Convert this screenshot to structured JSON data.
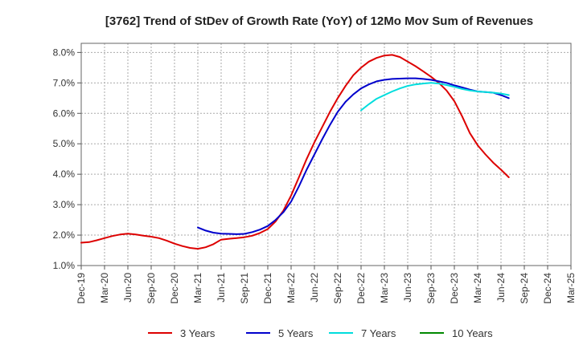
{
  "chart_data": {
    "type": "line",
    "title": "[3762]  Trend of StDev of Growth Rate (YoY) of 12Mo Mov Sum of Revenues",
    "xlabel": "",
    "ylabel": "",
    "x_tick_labels": [
      "Dec-19",
      "Mar-20",
      "Jun-20",
      "Sep-20",
      "Dec-20",
      "Mar-21",
      "Jun-21",
      "Sep-21",
      "Dec-21",
      "Mar-22",
      "Jun-22",
      "Sep-22",
      "Dec-22",
      "Mar-23",
      "Jun-23",
      "Sep-23",
      "Dec-23",
      "Mar-24",
      "Jun-24",
      "Sep-24",
      "Dec-24",
      "Mar-25"
    ],
    "y_tick_labels": [
      "1.0%",
      "2.0%",
      "3.0%",
      "4.0%",
      "5.0%",
      "6.0%",
      "7.0%",
      "8.0%"
    ],
    "ylim": [
      1.0,
      8.3
    ],
    "x_range_months": [
      0,
      63
    ],
    "grid": true,
    "legend_position": "bottom",
    "series": [
      {
        "name": "3 Years",
        "color": "#dd0000",
        "points": [
          [
            0,
            1.75
          ],
          [
            1,
            1.77
          ],
          [
            2,
            1.83
          ],
          [
            3,
            1.9
          ],
          [
            4,
            1.97
          ],
          [
            5,
            2.02
          ],
          [
            6,
            2.05
          ],
          [
            7,
            2.02
          ],
          [
            8,
            1.98
          ],
          [
            9,
            1.95
          ],
          [
            10,
            1.9
          ],
          [
            11,
            1.82
          ],
          [
            12,
            1.72
          ],
          [
            13,
            1.64
          ],
          [
            14,
            1.58
          ],
          [
            15,
            1.55
          ],
          [
            16,
            1.6
          ],
          [
            17,
            1.7
          ],
          [
            18,
            1.85
          ],
          [
            19,
            1.88
          ],
          [
            20,
            1.9
          ],
          [
            21,
            1.93
          ],
          [
            22,
            1.98
          ],
          [
            23,
            2.07
          ],
          [
            24,
            2.2
          ],
          [
            25,
            2.45
          ],
          [
            26,
            2.8
          ],
          [
            27,
            3.3
          ],
          [
            28,
            3.9
          ],
          [
            29,
            4.5
          ],
          [
            30,
            5.05
          ],
          [
            31,
            5.55
          ],
          [
            32,
            6.05
          ],
          [
            33,
            6.5
          ],
          [
            34,
            6.9
          ],
          [
            35,
            7.25
          ],
          [
            36,
            7.5
          ],
          [
            37,
            7.7
          ],
          [
            38,
            7.82
          ],
          [
            39,
            7.9
          ],
          [
            40,
            7.92
          ],
          [
            41,
            7.85
          ],
          [
            42,
            7.7
          ],
          [
            43,
            7.55
          ],
          [
            44,
            7.38
          ],
          [
            45,
            7.2
          ],
          [
            46,
            7.0
          ],
          [
            47,
            6.75
          ],
          [
            48,
            6.4
          ],
          [
            49,
            5.9
          ],
          [
            50,
            5.35
          ],
          [
            51,
            4.95
          ],
          [
            52,
            4.65
          ],
          [
            53,
            4.38
          ],
          [
            54,
            4.15
          ],
          [
            55,
            3.9
          ]
        ]
      },
      {
        "name": "5 Years",
        "color": "#0000cc",
        "points": [
          [
            15,
            2.25
          ],
          [
            16,
            2.15
          ],
          [
            17,
            2.08
          ],
          [
            18,
            2.05
          ],
          [
            19,
            2.04
          ],
          [
            20,
            2.03
          ],
          [
            21,
            2.04
          ],
          [
            22,
            2.1
          ],
          [
            23,
            2.18
          ],
          [
            24,
            2.3
          ],
          [
            25,
            2.5
          ],
          [
            26,
            2.75
          ],
          [
            27,
            3.1
          ],
          [
            28,
            3.6
          ],
          [
            29,
            4.15
          ],
          [
            30,
            4.65
          ],
          [
            31,
            5.15
          ],
          [
            32,
            5.62
          ],
          [
            33,
            6.05
          ],
          [
            34,
            6.38
          ],
          [
            35,
            6.62
          ],
          [
            36,
            6.82
          ],
          [
            37,
            6.95
          ],
          [
            38,
            7.05
          ],
          [
            39,
            7.1
          ],
          [
            40,
            7.13
          ],
          [
            41,
            7.14
          ],
          [
            42,
            7.15
          ],
          [
            43,
            7.15
          ],
          [
            44,
            7.13
          ],
          [
            45,
            7.1
          ],
          [
            46,
            7.05
          ],
          [
            47,
            7.0
          ],
          [
            48,
            6.92
          ],
          [
            49,
            6.85
          ],
          [
            50,
            6.78
          ],
          [
            51,
            6.72
          ],
          [
            52,
            6.7
          ],
          [
            53,
            6.68
          ],
          [
            54,
            6.6
          ],
          [
            55,
            6.5
          ]
        ]
      },
      {
        "name": "7 Years",
        "color": "#00dddd",
        "points": [
          [
            36,
            6.1
          ],
          [
            37,
            6.3
          ],
          [
            38,
            6.48
          ],
          [
            39,
            6.6
          ],
          [
            40,
            6.72
          ],
          [
            41,
            6.82
          ],
          [
            42,
            6.9
          ],
          [
            43,
            6.95
          ],
          [
            44,
            6.98
          ],
          [
            45,
            7.0
          ],
          [
            46,
            6.98
          ],
          [
            47,
            6.93
          ],
          [
            48,
            6.87
          ],
          [
            49,
            6.8
          ],
          [
            50,
            6.75
          ],
          [
            51,
            6.72
          ],
          [
            52,
            6.7
          ],
          [
            53,
            6.68
          ],
          [
            54,
            6.65
          ],
          [
            55,
            6.6
          ]
        ]
      },
      {
        "name": "10 Years",
        "color": "#008800",
        "points": []
      }
    ]
  }
}
